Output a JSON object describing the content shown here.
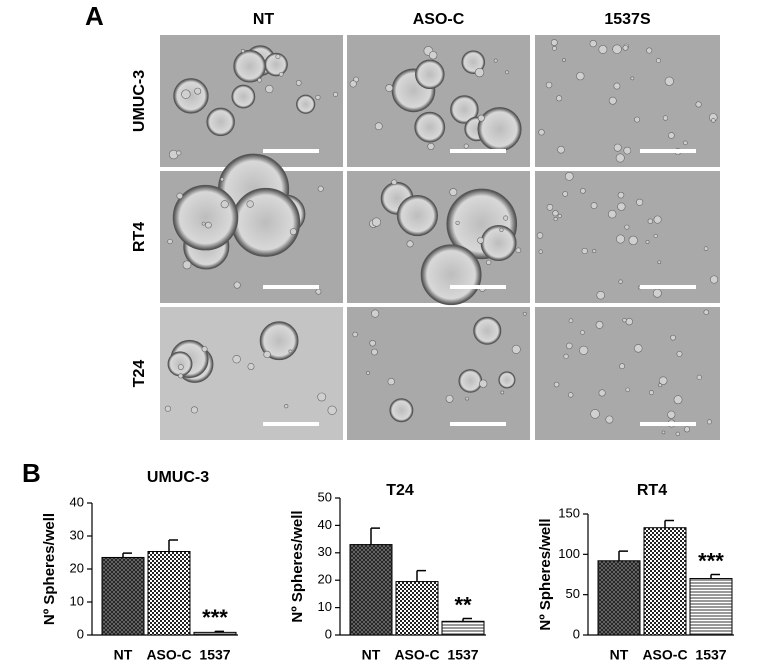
{
  "panel_labels": [
    "A",
    "B"
  ],
  "image_grid": {
    "columns": [
      "NT",
      "ASO-C",
      "1537S"
    ],
    "rows": [
      "UMUC-3",
      "RT4",
      "T24"
    ]
  },
  "chart_data": [
    {
      "type": "bar",
      "title": "UMUC-3",
      "y_label": "Nº Spheres/well",
      "categories": [
        "NT",
        "ASO-C",
        "1537"
      ],
      "values": [
        23.5,
        25.3,
        0.8
      ],
      "errors": [
        1.3,
        3.5,
        0.3
      ],
      "significance": [
        null,
        null,
        "***"
      ],
      "ylim": [
        0,
        40
      ],
      "yticks": [
        0,
        10,
        20,
        30,
        40
      ]
    },
    {
      "type": "bar",
      "title": "T24",
      "y_label": "Nº Spheres/well",
      "categories": [
        "NT",
        "ASO-C",
        "1537"
      ],
      "values": [
        33,
        19.5,
        5
      ],
      "errors": [
        6,
        4,
        1
      ],
      "significance": [
        null,
        null,
        "**"
      ],
      "ylim": [
        0,
        50
      ],
      "yticks": [
        0,
        10,
        20,
        30,
        40,
        50
      ]
    },
    {
      "type": "bar",
      "title": "RT4",
      "y_label": "Nº Spheres/well",
      "categories": [
        "NT",
        "ASO-C",
        "1537"
      ],
      "values": [
        92,
        133,
        70
      ],
      "errors": [
        12,
        9,
        5
      ],
      "significance": [
        null,
        null,
        "***"
      ],
      "ylim": [
        0,
        150
      ],
      "yticks": [
        0,
        50,
        100,
        150
      ]
    }
  ]
}
